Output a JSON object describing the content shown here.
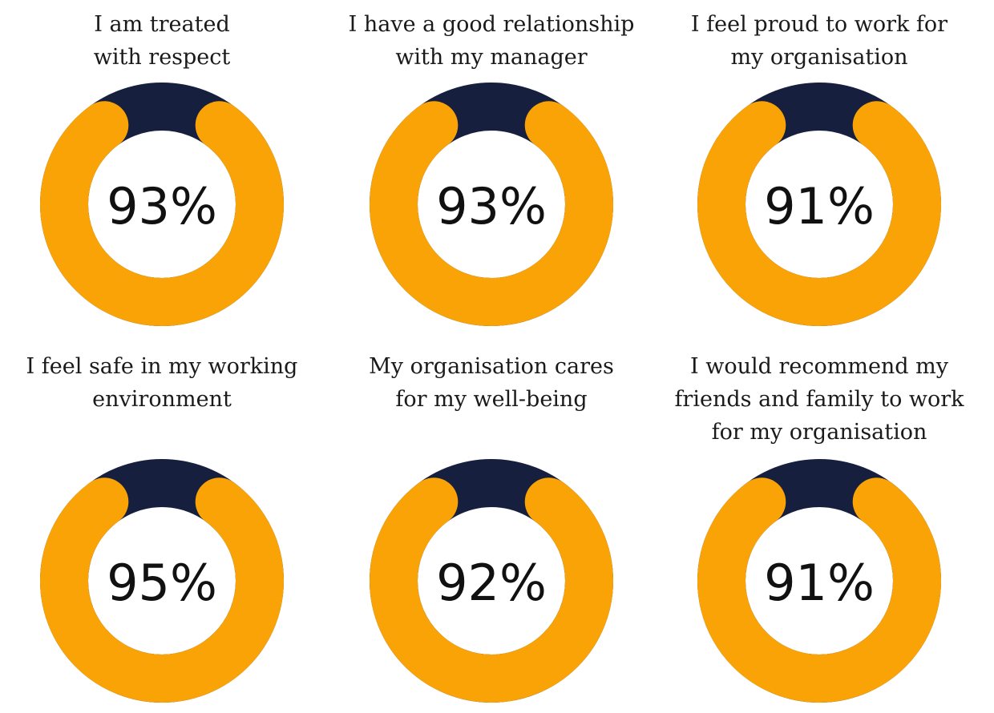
{
  "colors": {
    "agree": "#FAA307",
    "rest": "#161F3E",
    "background": "#FFFFFF"
  },
  "chart_data": [
    {
      "type": "pie",
      "variant": "donut",
      "label_lines": [
        "I am treated",
        "with respect"
      ],
      "values": [
        93,
        7
      ],
      "center_label": "93%"
    },
    {
      "type": "pie",
      "variant": "donut",
      "label_lines": [
        "I have a good relationship",
        "with my manager"
      ],
      "values": [
        93,
        7
      ],
      "center_label": "93%"
    },
    {
      "type": "pie",
      "variant": "donut",
      "label_lines": [
        "I feel proud to work for",
        "my organisation"
      ],
      "values": [
        91,
        9
      ],
      "center_label": "91%"
    },
    {
      "type": "pie",
      "variant": "donut",
      "label_lines": [
        "I feel safe in my working",
        "environment"
      ],
      "values": [
        95,
        5
      ],
      "center_label": "95%"
    },
    {
      "type": "pie",
      "variant": "donut",
      "label_lines": [
        "My organisation cares",
        "for my well-being"
      ],
      "values": [
        92,
        8
      ],
      "center_label": "92%"
    },
    {
      "type": "pie",
      "variant": "donut",
      "label_lines": [
        "I would recommend my",
        "friends and family to work",
        "for my organisation"
      ],
      "values": [
        91,
        9
      ],
      "center_label": "91%"
    }
  ]
}
